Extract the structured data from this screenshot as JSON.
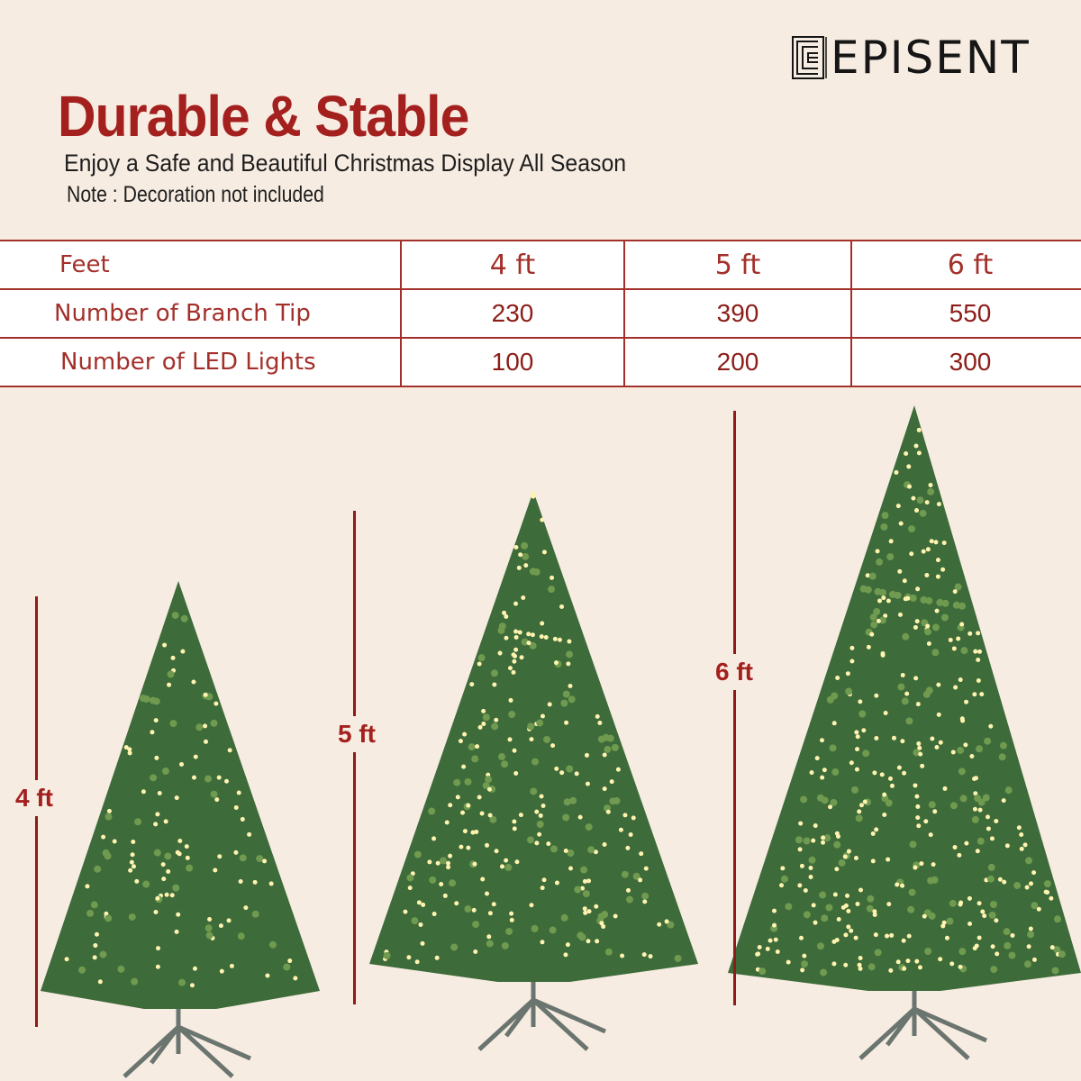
{
  "brand": {
    "logo_text": "EPISENT"
  },
  "header": {
    "title": "Durable & Stable",
    "subtitle": "Enjoy a Safe and Beautiful Christmas Display All Season",
    "note": "Note : Decoration not included"
  },
  "table": {
    "rows": [
      {
        "label": "Feet",
        "values": [
          "4 ft",
          "5 ft",
          "6 ft"
        ]
      },
      {
        "label": "Number of Branch Tip",
        "values": [
          "230",
          "390",
          "550"
        ]
      },
      {
        "label": "Number of LED Lights",
        "values": [
          "100",
          "200",
          "300"
        ]
      }
    ]
  },
  "trees": [
    {
      "height_label": "4 ft"
    },
    {
      "height_label": "5 ft"
    },
    {
      "height_label": "6 ft"
    }
  ],
  "colors": {
    "accent": "#a3201f",
    "background": "#f7ece1",
    "tree": "#3d6b3a",
    "light": "#fff3b0"
  }
}
